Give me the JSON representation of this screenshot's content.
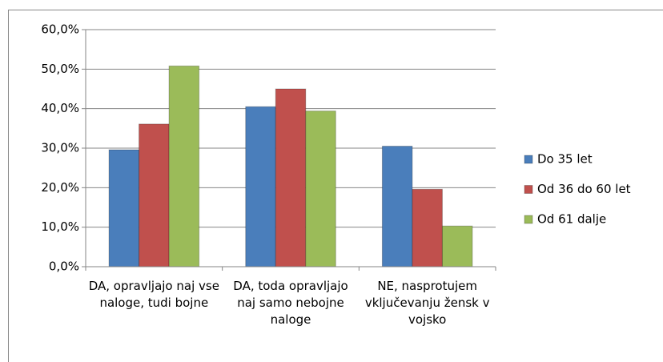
{
  "chart_data": {
    "type": "bar",
    "categories": [
      "DA, opravljajo naj vse naloge, tudi bojne",
      "DA, toda opravljajo naj samo nebojne naloge",
      "NE, nasprotujem vključevanju žensk v vojsko"
    ],
    "series": [
      {
        "name": "Do 35 let",
        "color": "#4a7ebb",
        "values": [
          29.6,
          40.5,
          30.5
        ]
      },
      {
        "name": "Od 36 do 60 let",
        "color": "#c0504d",
        "values": [
          36.1,
          45.0,
          19.6
        ]
      },
      {
        "name": "Od 61 dalje",
        "color": "#9bbb59",
        "values": [
          50.8,
          39.4,
          10.3
        ]
      }
    ],
    "ylim": [
      0,
      60
    ],
    "yticks": [
      {
        "value": 0,
        "label": "0,0%"
      },
      {
        "value": 10,
        "label": "10,0%"
      },
      {
        "value": 20,
        "label": "20,0%"
      },
      {
        "value": 30,
        "label": "30,0%"
      },
      {
        "value": 40,
        "label": "40,0%"
      },
      {
        "value": 50,
        "label": "50,0%"
      },
      {
        "value": 60,
        "label": "60,0%"
      }
    ],
    "grid": true,
    "legend": "right"
  }
}
